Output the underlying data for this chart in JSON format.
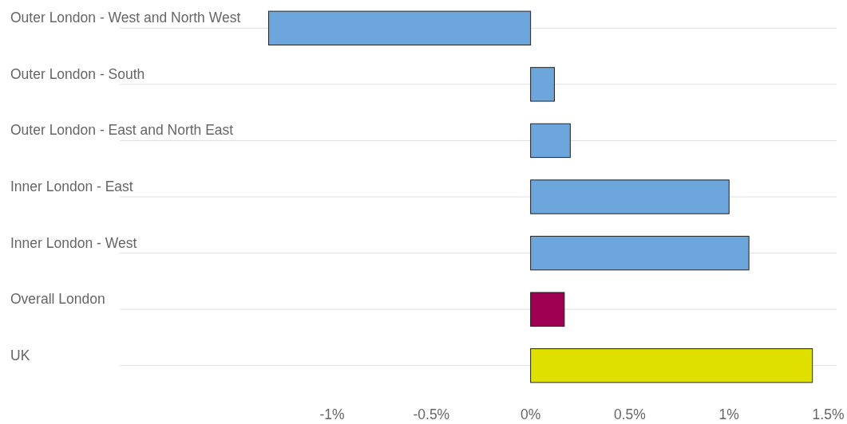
{
  "chart_data": {
    "type": "bar",
    "orientation": "horizontal",
    "categories": [
      "Outer London - West and North West",
      "Outer London - South",
      "Outer London - East and North East",
      "Inner London - East",
      "Inner London - West",
      "Overall London",
      "UK"
    ],
    "values": [
      -1.32,
      0.12,
      0.2,
      1.0,
      1.1,
      0.17,
      1.42
    ],
    "colors": [
      "#6ca6dd",
      "#6ca6dd",
      "#6ca6dd",
      "#6ca6dd",
      "#6ca6dd",
      "#9e0052",
      "#dfe000"
    ],
    "xlim": [
      -2.07,
      1.55
    ],
    "xticks": [
      {
        "value": -1,
        "label": "-1%"
      },
      {
        "value": -0.5,
        "label": "-0.5%"
      },
      {
        "value": 0,
        "label": "0%"
      },
      {
        "value": 0.5,
        "label": "0.5%"
      },
      {
        "value": 1,
        "label": "1%"
      },
      {
        "value": 1.5,
        "label": "1.5%"
      }
    ],
    "grid": "y"
  }
}
